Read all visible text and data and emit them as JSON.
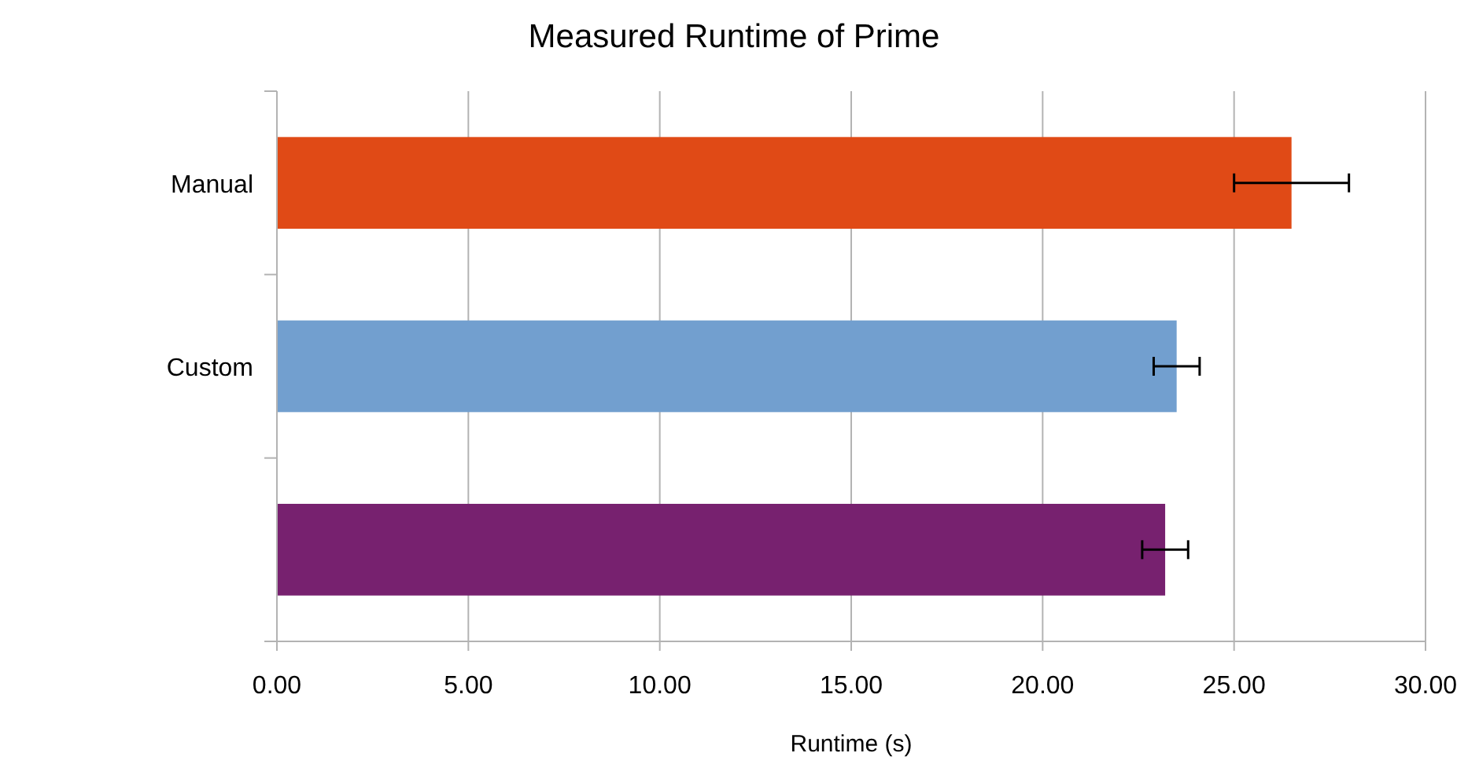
{
  "chart_data": {
    "type": "bar",
    "orientation": "horizontal",
    "title": "Measured Runtime of  Prime",
    "xlabel": "Runtime (s)",
    "categories": [
      "Manual",
      "Custom",
      null
    ],
    "values": [
      26.5,
      23.5,
      23.2
    ],
    "colors": [
      "#e04a16",
      "#729fcf",
      "#77216f"
    ],
    "errors": [
      1.5,
      0.6,
      0.6
    ],
    "xlim": [
      0,
      30
    ],
    "xticks": [
      {
        "value": 0,
        "label": "0.00"
      },
      {
        "value": 5,
        "label": "5.00"
      },
      {
        "value": 10,
        "label": "10.00"
      },
      {
        "value": 15,
        "label": "15.00"
      },
      {
        "value": 20,
        "label": "20.00"
      },
      {
        "value": 25,
        "label": "25.00"
      },
      {
        "value": 30,
        "label": "30.00"
      }
    ],
    "grid": "x"
  }
}
